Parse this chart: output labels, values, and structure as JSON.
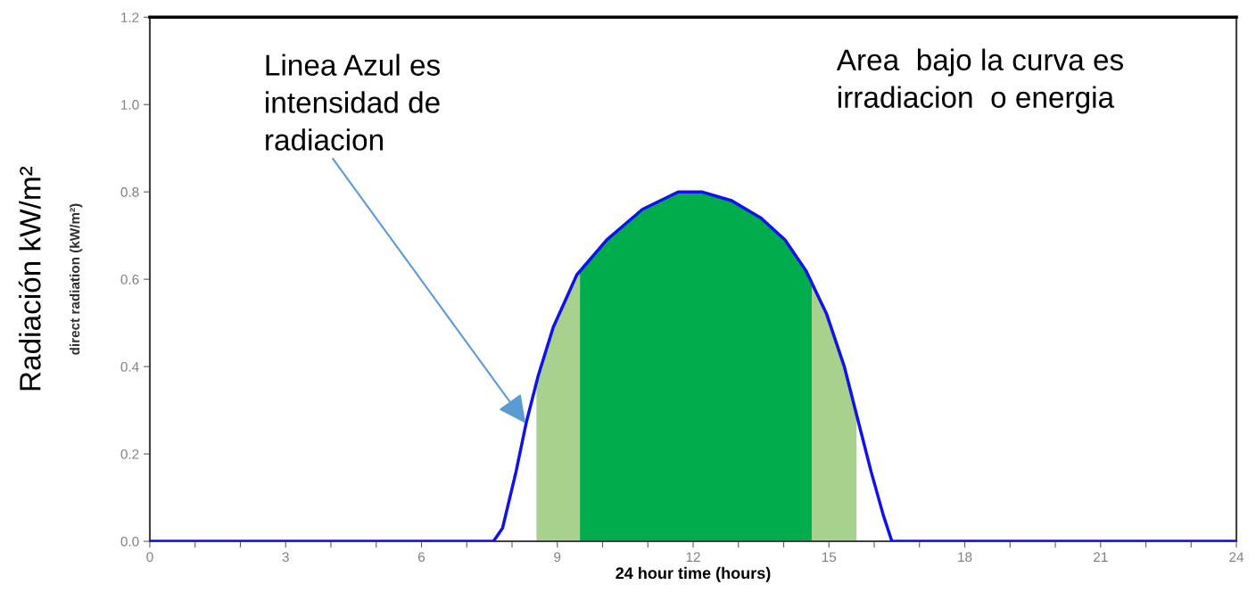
{
  "chart_data": {
    "type": "line",
    "ylabel": "Radiación kW/m²",
    "xlabel": "24 hour time (hours)",
    "xlim": [
      0,
      24
    ],
    "ylim": [
      0,
      1.2
    ],
    "xticks": [
      0,
      {
        "value": 1,
        "label": null
      },
      {
        "value": 2,
        "label": null
      },
      3,
      {
        "value": 4,
        "label": null
      },
      {
        "value": 5,
        "label": null
      },
      6,
      {
        "value": 7,
        "label": null
      },
      {
        "value": 8,
        "label": null
      },
      9,
      {
        "value": 10,
        "label": null
      },
      {
        "value": 11,
        "label": null
      },
      12,
      {
        "value": 13,
        "label": null
      },
      {
        "value": 14,
        "label": null
      },
      15,
      {
        "value": 16,
        "label": null
      },
      {
        "value": 17,
        "label": null
      },
      18,
      {
        "value": 19,
        "label": null
      },
      {
        "value": 20,
        "label": null
      },
      21,
      {
        "value": 22,
        "label": null
      },
      {
        "value": 23,
        "label": null
      },
      24
    ],
    "yticks": [
      {
        "value": 0,
        "label": "0.0"
      },
      {
        "value": 0.2,
        "label": "0.2"
      },
      {
        "value": 0.4,
        "label": "0.4"
      },
      {
        "value": 0.6,
        "label": "0.6"
      },
      {
        "value": 0.8,
        "label": "0.8"
      },
      {
        "value": 1.0,
        "label": "1.0"
      },
      {
        "value": 1.2,
        "label": "1.2"
      }
    ],
    "grid": false,
    "legend": false,
    "series": [
      {
        "type": "area",
        "color": "#a9d18e",
        "x": [
          8.54,
          8.91,
          9.43,
          9.5
        ],
        "values": [
          0.37,
          0.49,
          0.61,
          0.62
        ]
      },
      {
        "type": "area",
        "color": "#a9d18e",
        "x": [
          14.62,
          14.95,
          15.34,
          15.61
        ],
        "values": [
          0.6,
          0.52,
          0.4,
          0.29
        ]
      },
      {
        "type": "area",
        "color": "#00ad4c",
        "x": [
          9.5,
          10.09,
          10.88,
          11.67,
          12.19,
          12.85,
          13.5,
          14.03,
          14.49,
          14.62
        ],
        "values": [
          0.62,
          0.69,
          0.76,
          0.8,
          0.8,
          0.78,
          0.74,
          0.69,
          0.62,
          0.6
        ]
      },
      {
        "color": "#1010f0",
        "x": [
          0,
          7.59,
          7.79,
          8.09,
          8.31,
          8.58,
          8.91,
          9.43,
          10.09,
          10.88,
          11.67,
          12.19,
          12.85,
          13.5,
          14.03,
          14.49,
          14.95,
          15.34,
          15.61,
          15.93,
          16.2,
          16.39,
          24
        ],
        "values": [
          0,
          0,
          0.03,
          0.16,
          0.27,
          0.38,
          0.49,
          0.61,
          0.69,
          0.76,
          0.8,
          0.8,
          0.78,
          0.74,
          0.69,
          0.62,
          0.52,
          0.4,
          0.29,
          0.16,
          0.06,
          0,
          0
        ]
      }
    ],
    "annotations": [
      "direct radiation (kW/m²)",
      {
        "text": "Linea Azul es\nintensidad de\nradiacion",
        "x": 8.3,
        "y": 0.27
      },
      "Area  bajo la curva es\nirradiacion  o energia"
    ]
  }
}
